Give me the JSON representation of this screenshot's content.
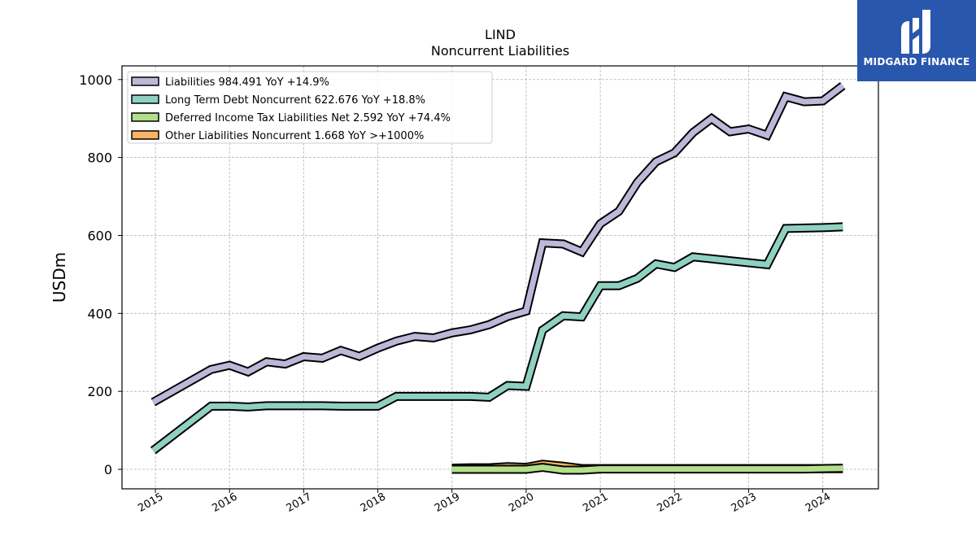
{
  "chart_data": {
    "type": "line",
    "title": "LIND",
    "subtitle": "Noncurrent  Liabilities",
    "ylabel": "USDm",
    "xlabel": "",
    "xlim": [
      2014.55,
      2024.75
    ],
    "ylim": [
      -50,
      1035
    ],
    "grid": true,
    "legend_position": "top-left",
    "x_ticks": [
      2015,
      2016,
      2017,
      2018,
      2019,
      2020,
      2021,
      2022,
      2023,
      2024
    ],
    "x_tick_labels": [
      "2015",
      "2016",
      "2017",
      "2018",
      "2019",
      "2020",
      "2021",
      "2022",
      "2023",
      "2024"
    ],
    "y_ticks": [
      0,
      200,
      400,
      600,
      800,
      1000
    ],
    "y_tick_labels": [
      "0",
      "200",
      "400",
      "600",
      "800",
      "1000"
    ],
    "series": [
      {
        "name": "Liabilities  984.491 YoY +14.9%",
        "color": "#bcb8d9",
        "points": [
          [
            2014.97,
            172
          ],
          [
            2015.75,
            256
          ],
          [
            2016.0,
            267
          ],
          [
            2016.25,
            250
          ],
          [
            2016.5,
            276
          ],
          [
            2016.75,
            270
          ],
          [
            2017.0,
            289
          ],
          [
            2017.25,
            285
          ],
          [
            2017.5,
            305
          ],
          [
            2017.75,
            290
          ],
          [
            2018.0,
            311
          ],
          [
            2018.25,
            329
          ],
          [
            2018.5,
            341
          ],
          [
            2018.75,
            337
          ],
          [
            2019.0,
            350
          ],
          [
            2019.25,
            358
          ],
          [
            2019.5,
            371
          ],
          [
            2019.75,
            392
          ],
          [
            2020.0,
            406
          ],
          [
            2020.22,
            581
          ],
          [
            2020.5,
            578
          ],
          [
            2020.75,
            558
          ],
          [
            2021.0,
            630
          ],
          [
            2021.25,
            662
          ],
          [
            2021.5,
            736
          ],
          [
            2021.75,
            789
          ],
          [
            2022.0,
            812
          ],
          [
            2022.25,
            864
          ],
          [
            2022.5,
            900
          ],
          [
            2022.75,
            866
          ],
          [
            2023.0,
            873
          ],
          [
            2023.25,
            857
          ],
          [
            2023.5,
            956
          ],
          [
            2023.75,
            943
          ],
          [
            2024.0,
            945
          ],
          [
            2024.27,
            984
          ]
        ]
      },
      {
        "name": "Long Term Debt Noncurrent  622.676 YoY +18.8%",
        "color": "#8fd1c1",
        "points": [
          [
            2014.97,
            48
          ],
          [
            2015.75,
            162
          ],
          [
            2016.0,
            162
          ],
          [
            2016.25,
            160
          ],
          [
            2016.5,
            163
          ],
          [
            2016.75,
            163
          ],
          [
            2017.0,
            163
          ],
          [
            2017.25,
            163
          ],
          [
            2017.5,
            162
          ],
          [
            2017.75,
            162
          ],
          [
            2018.0,
            162
          ],
          [
            2018.25,
            187
          ],
          [
            2018.5,
            187
          ],
          [
            2018.75,
            187
          ],
          [
            2019.0,
            187
          ],
          [
            2019.25,
            187
          ],
          [
            2019.5,
            185
          ],
          [
            2019.75,
            215
          ],
          [
            2020.0,
            213
          ],
          [
            2020.22,
            357
          ],
          [
            2020.5,
            394
          ],
          [
            2020.75,
            391
          ],
          [
            2021.0,
            471
          ],
          [
            2021.25,
            471
          ],
          [
            2021.5,
            490
          ],
          [
            2021.75,
            527
          ],
          [
            2022.0,
            518
          ],
          [
            2022.25,
            545
          ],
          [
            2022.5,
            540
          ],
          [
            2022.75,
            535
          ],
          [
            2023.0,
            530
          ],
          [
            2023.25,
            525
          ],
          [
            2023.5,
            618
          ],
          [
            2023.75,
            619
          ],
          [
            2024.0,
            620
          ],
          [
            2024.27,
            622
          ]
        ]
      },
      {
        "name": "Deferred Income Tax Liabilities Net  2.592 YoY +74.4%",
        "color": "#b2df8a",
        "points": [
          [
            2019.0,
            0
          ],
          [
            2019.25,
            0
          ],
          [
            2019.5,
            0
          ],
          [
            2019.75,
            0
          ],
          [
            2020.0,
            0
          ],
          [
            2020.22,
            5
          ],
          [
            2020.5,
            -2
          ],
          [
            2020.75,
            -2
          ],
          [
            2021.0,
            1
          ],
          [
            2021.25,
            1
          ],
          [
            2021.5,
            1
          ],
          [
            2021.75,
            1
          ],
          [
            2022.0,
            1
          ],
          [
            2022.25,
            1
          ],
          [
            2022.5,
            1
          ],
          [
            2022.75,
            1
          ],
          [
            2023.0,
            1
          ],
          [
            2023.25,
            1
          ],
          [
            2023.5,
            1
          ],
          [
            2023.75,
            1
          ],
          [
            2024.0,
            2
          ],
          [
            2024.27,
            2.6
          ]
        ]
      },
      {
        "name": "Other Liabilities Noncurrent  1.668 YoY >+1000%",
        "color": "#fdb462",
        "points": [
          [
            2019.0,
            3
          ],
          [
            2019.25,
            4
          ],
          [
            2019.5,
            4
          ],
          [
            2019.75,
            7
          ],
          [
            2020.0,
            5
          ],
          [
            2020.22,
            13
          ],
          [
            2020.5,
            8
          ],
          [
            2020.75,
            2
          ],
          [
            2021.0,
            2
          ],
          [
            2021.25,
            2
          ],
          [
            2021.5,
            2
          ],
          [
            2021.75,
            2
          ],
          [
            2022.0,
            2
          ],
          [
            2022.25,
            2
          ],
          [
            2022.5,
            2
          ],
          [
            2022.75,
            2
          ],
          [
            2023.0,
            2
          ],
          [
            2023.25,
            2
          ],
          [
            2023.5,
            2
          ],
          [
            2023.75,
            2
          ],
          [
            2024.0,
            1.7
          ],
          [
            2024.27,
            1.7
          ]
        ]
      }
    ]
  },
  "branding": {
    "name": "MIDGARD FINANCE",
    "background": "#2a57ae"
  }
}
